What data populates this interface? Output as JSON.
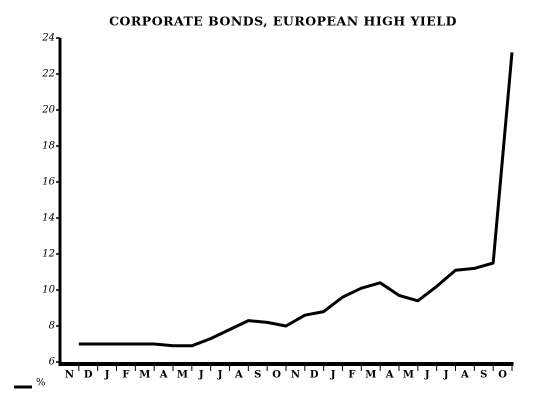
{
  "chart_data": {
    "type": "line",
    "title": "CORPORATE BONDS, EUROPEAN HIGH YIELD",
    "categories": [
      "N",
      "D",
      "J",
      "F",
      "M",
      "A",
      "M",
      "J",
      "J",
      "A",
      "S",
      "O",
      "N",
      "D",
      "J",
      "F",
      "M",
      "A",
      "M",
      "J",
      "J",
      "A",
      "S",
      "O"
    ],
    "series": [
      {
        "name": "%",
        "color": "#000000",
        "values": [
          7.0,
          7.0,
          7.0,
          7.0,
          7.0,
          6.9,
          6.9,
          7.3,
          7.8,
          8.3,
          8.2,
          8.0,
          8.6,
          8.8,
          9.6,
          10.1,
          10.4,
          9.7,
          9.4,
          10.2,
          11.1,
          11.2,
          11.5,
          23.2
        ]
      }
    ],
    "ylim": [
      6,
      24
    ],
    "yticks": [
      6,
      8,
      10,
      12,
      14,
      16,
      18,
      20,
      22,
      24
    ],
    "legend": "bottom-left"
  }
}
